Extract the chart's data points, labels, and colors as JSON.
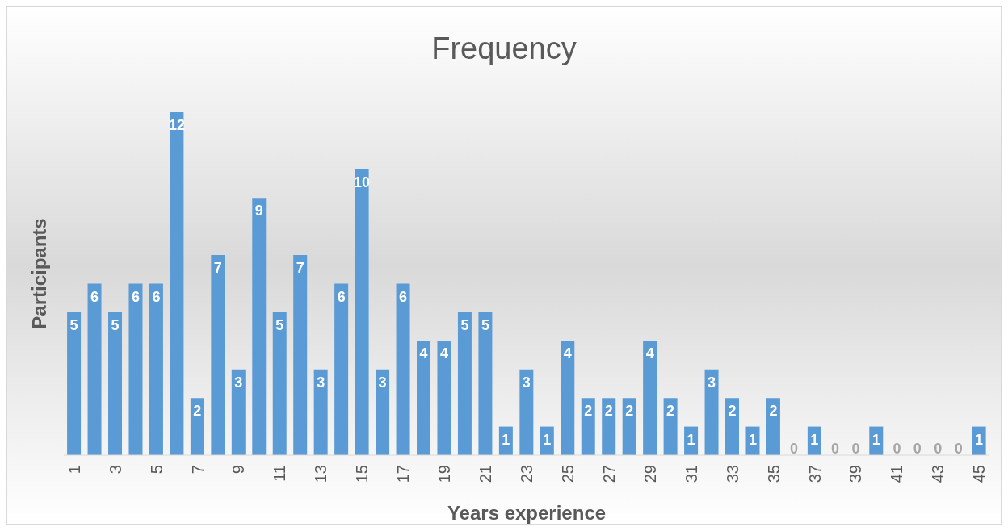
{
  "chart_data": {
    "type": "bar",
    "title": "Frequency",
    "xlabel": "Years experience",
    "ylabel": "Participants",
    "categories": [
      "1",
      null,
      "3",
      null,
      "5",
      null,
      "7",
      null,
      "9",
      null,
      "11",
      null,
      "13",
      null,
      "15",
      null,
      "17",
      null,
      "19",
      null,
      "21",
      null,
      "23",
      null,
      "25",
      null,
      "27",
      null,
      "29",
      null,
      "31",
      null,
      "33",
      null,
      "35",
      null,
      "37",
      null,
      "39",
      null,
      "41",
      null,
      "43",
      null,
      "45"
    ],
    "values": [
      5,
      6,
      5,
      6,
      6,
      12,
      2,
      7,
      3,
      9,
      5,
      7,
      3,
      6,
      10,
      3,
      6,
      4,
      4,
      5,
      5,
      1,
      3,
      1,
      4,
      2,
      2,
      2,
      4,
      2,
      1,
      3,
      2,
      1,
      2,
      0,
      1,
      0,
      0,
      1,
      0,
      0,
      0,
      0,
      1
    ],
    "color": "#5b9bd5",
    "data_labels": true
  }
}
